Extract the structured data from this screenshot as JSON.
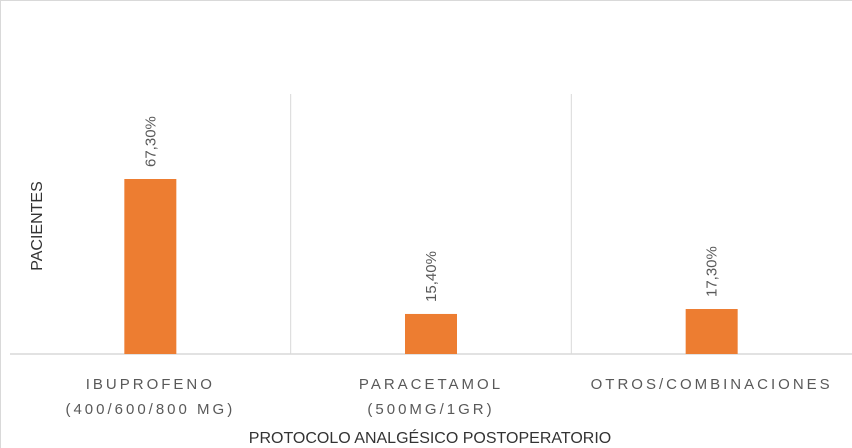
{
  "chart_data": {
    "type": "bar",
    "title": "",
    "xlabel": "PROTOCOLO ANALGÉSICO POSTOPERATORIO",
    "ylabel": "PACIENTES",
    "categories": [
      [
        "IBUPROFENO",
        "(400/600/800 MG)"
      ],
      [
        "PARACETAMOL",
        "(500MG/1GR)"
      ],
      [
        "OTROS/COMBINACIONES"
      ]
    ],
    "values": [
      67.3,
      15.4,
      17.3
    ],
    "data_labels": [
      "67,30%",
      "15,40%",
      "17,30%"
    ],
    "ylim": [
      0,
      67.3
    ],
    "grid": false,
    "legend": "none",
    "bar_color": "#ED7D31",
    "separator_color": "#d9d9d9"
  }
}
